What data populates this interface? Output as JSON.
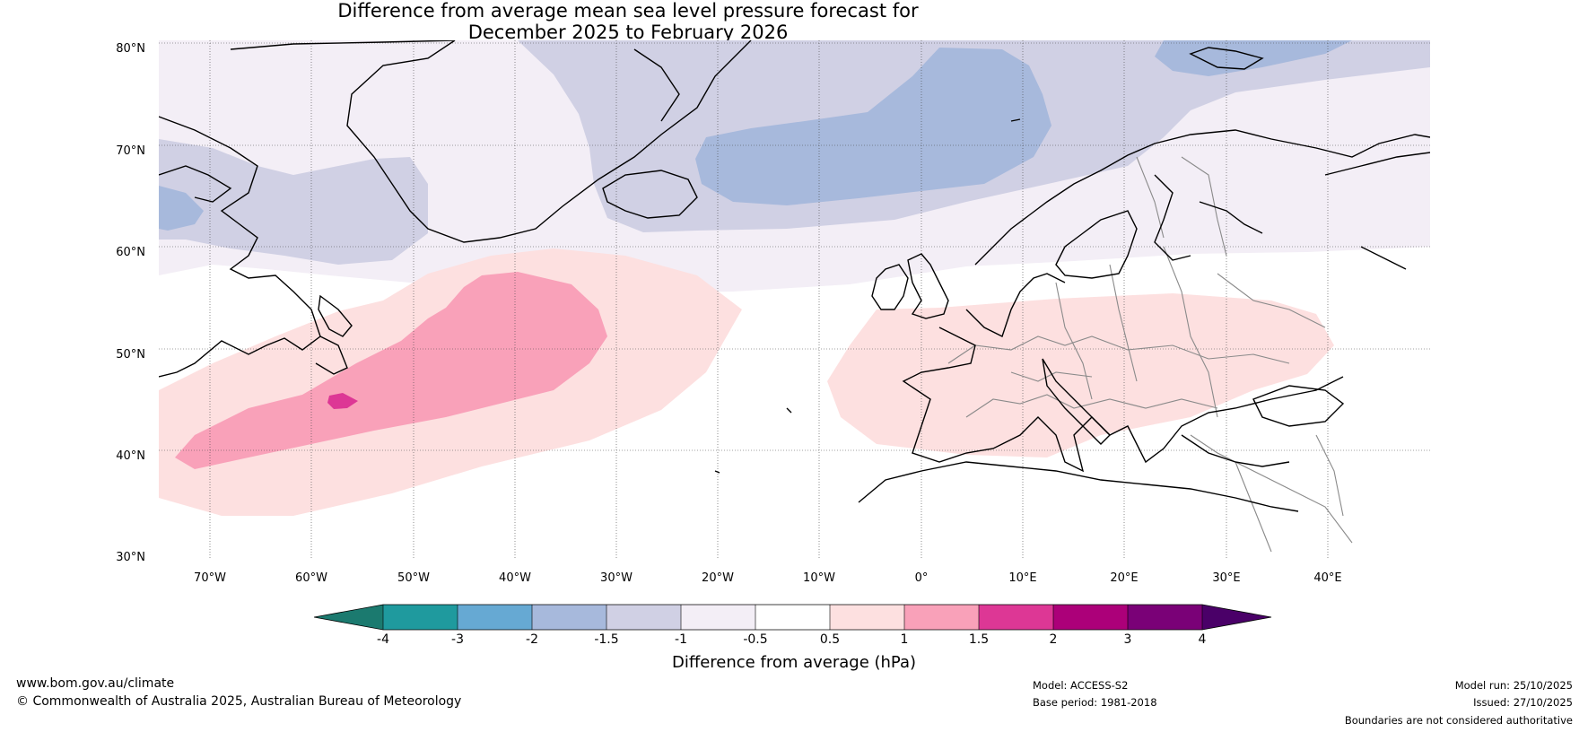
{
  "title": {
    "line1": "Difference from average mean sea level pressure forecast for",
    "line2": "December 2025 to February 2026"
  },
  "map": {
    "region": "North Atlantic and Europe",
    "lon_range_deg": [
      -75,
      50
    ],
    "lat_range_deg": [
      30,
      81
    ],
    "lat_ticks": [
      "80°N",
      "70°N",
      "60°N",
      "50°N",
      "40°N",
      "30°N"
    ],
    "lon_ticks": [
      "70°W",
      "60°W",
      "50°W",
      "40°W",
      "30°W",
      "20°W",
      "10°W",
      "0°",
      "10°E",
      "20°E",
      "30°E",
      "40°E"
    ],
    "gridlines": true
  },
  "colorbar": {
    "title": "Difference from average (hPa)",
    "labels": [
      "-4",
      "-3",
      "-2",
      "-1.5",
      "-1",
      "-0.5",
      "0.5",
      "1",
      "1.5",
      "2",
      "3",
      "4"
    ],
    "colors": [
      "#1b7a6f",
      "#1f9a9e",
      "#66a9d3",
      "#a7b9dc",
      "#d0d0e4",
      "#f3eef6",
      "#ffffff",
      "#fde0e0",
      "#f9a1b9",
      "#dd3795",
      "#ac0079",
      "#7a0177",
      "#4a0068"
    ]
  },
  "footer": {
    "website": "www.bom.gov.au/climate",
    "copyright": "© Commonwealth of Australia 2025, Australian Bureau of Meteorology",
    "model": "Model: ACCESS-S2",
    "base_period": "Base period: 1981-2018",
    "model_run": "Model run: 25/10/2025",
    "issued": "Issued: 27/10/2025",
    "disclaimer": "Boundaries are not considered authoritative"
  }
}
